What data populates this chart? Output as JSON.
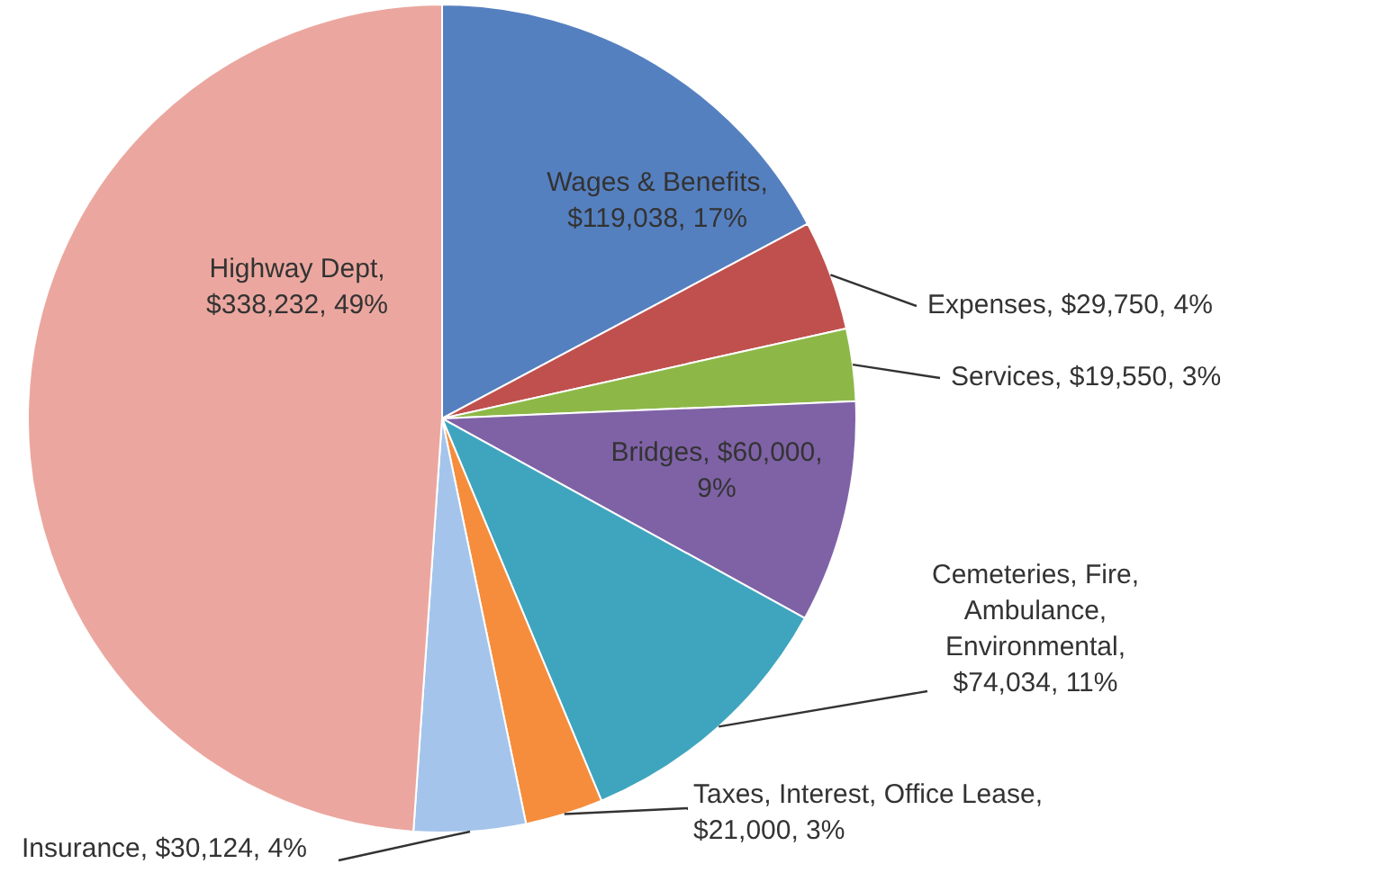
{
  "chart_data": {
    "type": "pie",
    "categories": [
      "Wages & Benefits, $119,038, 17%",
      "Expenses, $29,750, 4%",
      "Services, $19,550, 3%",
      "Bridges, $60,000, 9%",
      "Cemeteries, Fire, Ambulance, Environmental, $74,034, 11%",
      "Taxes, Interest, Office Lease, $21,000, 3%",
      "Insurance, $30,124, 4%",
      "Highway Dept, $338,232, 49%"
    ],
    "values": [
      119038,
      29750,
      19550,
      60000,
      74034,
      21000,
      30124,
      338232
    ],
    "colors": [
      "#5580c0",
      "#c0504d",
      "#8db848",
      "#7f62a6",
      "#3fa5bf",
      "#f58d3c",
      "#a4c4eb",
      "#eba79f"
    ],
    "legend": false
  }
}
